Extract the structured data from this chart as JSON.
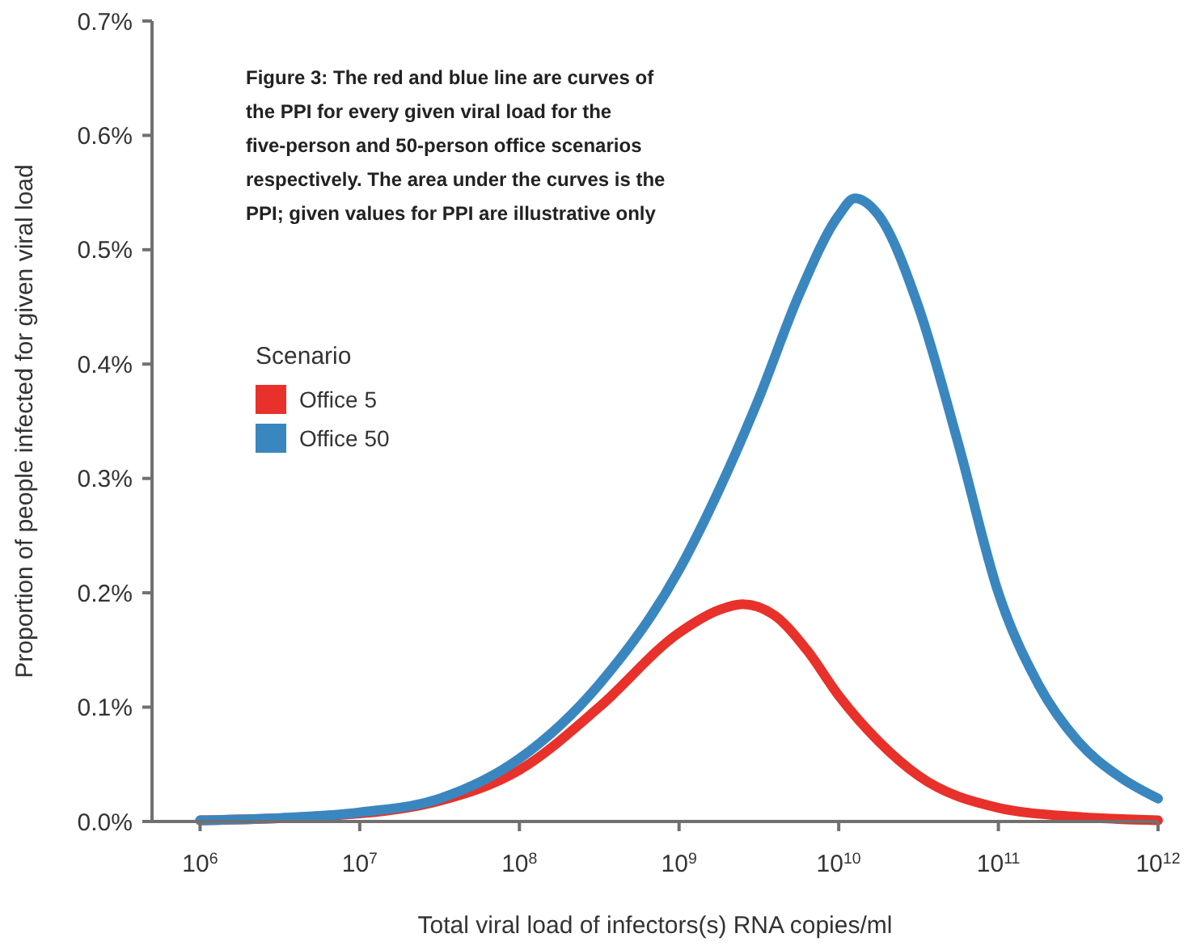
{
  "chart_data": {
    "type": "line",
    "xlabel": "Total viral load of infectors(s) RNA copies/ml",
    "ylabel": "Proportion of people infected for given viral load",
    "legend_title": "Scenario",
    "legend": "top left",
    "log": "x",
    "grid": false,
    "marker": "none",
    "line_style": "solid",
    "annotations": [
      "Figure 3: The red and blue line are curves of the PPI for every given viral load for the five-person and 50-person office scenarios respectively. The area under the curves is the PPI;  given values for PPI are illustrative only"
    ],
    "xlim": [
      500000.0,
      1000000000000.0
    ],
    "xticks": [
      {
        "value": 1000000.0,
        "label": "10$^{6}$"
      },
      {
        "value": 10000000.0,
        "label": "10$^{7}$"
      },
      {
        "value": 100000000.0,
        "label": "10$^{8}$"
      },
      {
        "value": 1000000000.0,
        "label": "10$^{9}$"
      },
      {
        "value": 10000000000.0,
        "label": "10$^{10}$"
      },
      {
        "value": 100000000000.0,
        "label": "10$^{11}$"
      },
      {
        "value": 1000000000000.0,
        "label": "10$^{12}$"
      }
    ],
    "ylim": [
      0,
      0.7
    ],
    "yticks": [
      {
        "value": 0,
        "label": "0.0%"
      },
      {
        "value": 0.1,
        "label": "0.1%"
      },
      {
        "value": 0.2,
        "label": "0.2%"
      },
      {
        "value": 0.3,
        "label": "0.3%"
      },
      {
        "value": 0.4,
        "label": "0.4%"
      },
      {
        "value": 0.5,
        "label": "0.5%"
      },
      {
        "value": 0.6,
        "label": "0.6%"
      },
      {
        "value": 0.7,
        "label": "0.7%"
      }
    ],
    "series": [
      {
        "name": "Office 5",
        "color": "#e8312a",
        "x": [
          1000000.0,
          10000000.0,
          31600000.0,
          100000000.0,
          316000000.0,
          1000000000.0,
          1780000000.0,
          2500000000.0,
          3980000000.0,
          6310000000.0,
          10000000000.0,
          17800000000.0,
          31600000000.0,
          100000000000.0,
          316000000000.0,
          1000000000000.0
        ],
        "values": [
          0.001,
          0.007,
          0.018,
          0.045,
          0.1,
          0.165,
          0.185,
          0.19,
          0.18,
          0.15,
          0.11,
          0.07,
          0.04,
          0.012,
          0.004,
          0.001
        ]
      },
      {
        "name": "Office 50",
        "color": "#3a87c0",
        "x": [
          1000000.0,
          3160000.0,
          10000000.0,
          31600000.0,
          100000000.0,
          316000000.0,
          1000000000.0,
          1780000000.0,
          3160000000.0,
          5620000000.0,
          10000000000.0,
          12600000000.0,
          17800000000.0,
          31600000000.0,
          56200000000.0,
          100000000000.0,
          178000000000.0,
          316000000000.0,
          562000000000.0,
          1000000000000.0
        ],
        "values": [
          0.001,
          0.003,
          0.008,
          0.02,
          0.055,
          0.12,
          0.22,
          0.29,
          0.37,
          0.46,
          0.53,
          0.545,
          0.53,
          0.45,
          0.33,
          0.2,
          0.12,
          0.07,
          0.04,
          0.02
        ]
      }
    ]
  }
}
